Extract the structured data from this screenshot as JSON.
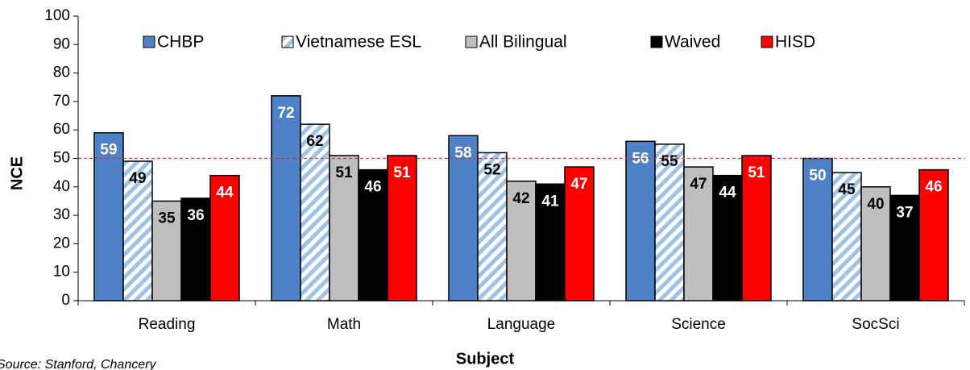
{
  "chart_data": {
    "type": "bar",
    "y_label": "NCE",
    "x_label": "Subject",
    "source": "Source: Stanford, Chancery",
    "categories": [
      "Reading",
      "Math",
      "Language",
      "Science",
      "SocSci"
    ],
    "series": [
      {
        "name": "CHBP",
        "color": "#4f81c7",
        "label_color": "#ffffff",
        "values": [
          59,
          72,
          58,
          56,
          50
        ]
      },
      {
        "name": "Vietnamese ESL",
        "color": "#9ec3e6",
        "pattern": "hatch",
        "label_color": "#000000",
        "values": [
          49,
          62,
          52,
          55,
          45
        ]
      },
      {
        "name": "All Bilingual",
        "color": "#bfbfbf",
        "label_color": "#000000",
        "values": [
          35,
          51,
          42,
          47,
          40
        ]
      },
      {
        "name": "Waived",
        "color": "#000000",
        "label_color": "#ffffff",
        "values": [
          36,
          46,
          41,
          44,
          37
        ]
      },
      {
        "name": "HISD",
        "color": "#ff0000",
        "label_color": "#ffffff",
        "values": [
          44,
          51,
          47,
          51,
          46
        ]
      }
    ],
    "reference_line": {
      "value": 50,
      "color": "#e03030"
    },
    "ylim": [
      0,
      100
    ],
    "yticks": [
      0,
      10,
      20,
      30,
      40,
      50,
      60,
      70,
      80,
      90,
      100
    ],
    "legend": "top"
  }
}
